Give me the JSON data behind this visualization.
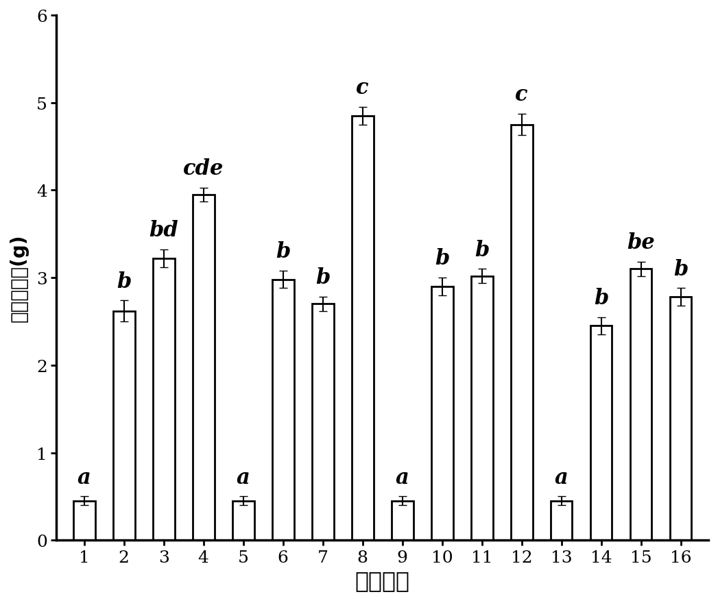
{
  "categories": [
    1,
    2,
    3,
    4,
    5,
    6,
    7,
    8,
    9,
    10,
    11,
    12,
    13,
    14,
    15,
    16
  ],
  "values": [
    0.45,
    2.62,
    3.22,
    3.95,
    0.45,
    2.98,
    2.7,
    4.85,
    0.45,
    2.9,
    3.02,
    4.75,
    0.45,
    2.45,
    3.1,
    2.78
  ],
  "labels": [
    "a",
    "b",
    "bd",
    "cde",
    "a",
    "b",
    "b",
    "c",
    "a",
    "b",
    "b",
    "c",
    "a",
    "b",
    "be",
    "b"
  ],
  "error_bars": [
    0.05,
    0.12,
    0.1,
    0.08,
    0.05,
    0.1,
    0.08,
    0.1,
    0.05,
    0.1,
    0.08,
    0.12,
    0.05,
    0.1,
    0.08,
    0.1
  ],
  "bar_color": "#ffffff",
  "bar_edgecolor": "#000000",
  "bar_linewidth": 2.0,
  "xlabel": "盐氮组合",
  "ylabel": "地上生物质(g)",
  "ylim": [
    0,
    6
  ],
  "yticks": [
    0,
    1,
    2,
    3,
    4,
    5,
    6
  ],
  "xlabel_fontsize": 24,
  "ylabel_fontsize": 20,
  "tick_fontsize": 18,
  "label_fontsize": 22,
  "bar_width": 0.55,
  "figsize": [
    10.47,
    8.78
  ],
  "dpi": 100,
  "background_color": "#ffffff"
}
